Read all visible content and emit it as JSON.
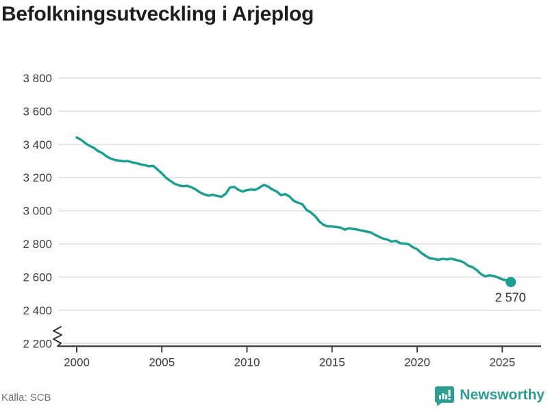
{
  "title": "Befolkningsutveckling i Arjeplog",
  "source_label": "Källa: SCB",
  "brand": {
    "name": "Newsworthy",
    "color": "#2d9d92",
    "icon": "newsworthy-speech-bubble-chart-icon"
  },
  "chart_data": {
    "type": "line",
    "title": "Befolkningsutveckling i Arjeplog",
    "xlabel": "",
    "ylabel": "",
    "legend": "none",
    "grid": "horizontal",
    "axis_break_at_bottom": true,
    "line_color": "#1d9f90",
    "axis_color": "#404040",
    "gridline_color": "#dedede",
    "tick_text_color": "#3c3c3c",
    "x_range": [
      2000,
      2027.3
    ],
    "y_range": [
      2200,
      3900
    ],
    "yticks": [
      3800,
      3600,
      3400,
      3200,
      3000,
      2800,
      2600,
      2400,
      2200
    ],
    "ytick_labels": [
      "3 800",
      "3 600",
      "3 400",
      "3 200",
      "3 000",
      "2 800",
      "2 600",
      "2 400",
      "2 200"
    ],
    "xticks": [
      2000,
      2005,
      2010,
      2015,
      2020,
      2025
    ],
    "xtick_labels": [
      "2000",
      "2005",
      "2010",
      "2015",
      "2020",
      "2025"
    ],
    "end_label": "2 570",
    "end_value": 2570,
    "series": [
      {
        "name": "Befolkning i Arjeplog",
        "points": [
          [
            2000.0,
            3442
          ],
          [
            2000.25,
            3428
          ],
          [
            2000.5,
            3408
          ],
          [
            2000.75,
            3392
          ],
          [
            2001.0,
            3380
          ],
          [
            2001.25,
            3360
          ],
          [
            2001.5,
            3348
          ],
          [
            2001.75,
            3328
          ],
          [
            2002.0,
            3314
          ],
          [
            2002.25,
            3306
          ],
          [
            2002.5,
            3302
          ],
          [
            2002.75,
            3298
          ],
          [
            2003.0,
            3300
          ],
          [
            2003.25,
            3292
          ],
          [
            2003.5,
            3287
          ],
          [
            2003.75,
            3280
          ],
          [
            2004.0,
            3275
          ],
          [
            2004.25,
            3268
          ],
          [
            2004.5,
            3270
          ],
          [
            2004.75,
            3248
          ],
          [
            2005.0,
            3225
          ],
          [
            2005.25,
            3198
          ],
          [
            2005.5,
            3180
          ],
          [
            2005.75,
            3163
          ],
          [
            2006.0,
            3153
          ],
          [
            2006.25,
            3148
          ],
          [
            2006.5,
            3150
          ],
          [
            2006.75,
            3141
          ],
          [
            2007.0,
            3128
          ],
          [
            2007.25,
            3110
          ],
          [
            2007.5,
            3098
          ],
          [
            2007.75,
            3092
          ],
          [
            2008.0,
            3096
          ],
          [
            2008.25,
            3090
          ],
          [
            2008.5,
            3084
          ],
          [
            2008.75,
            3102
          ],
          [
            2009.0,
            3140
          ],
          [
            2009.25,
            3144
          ],
          [
            2009.5,
            3126
          ],
          [
            2009.75,
            3116
          ],
          [
            2010.0,
            3124
          ],
          [
            2010.25,
            3128
          ],
          [
            2010.5,
            3126
          ],
          [
            2010.75,
            3140
          ],
          [
            2011.0,
            3156
          ],
          [
            2011.25,
            3145
          ],
          [
            2011.5,
            3128
          ],
          [
            2011.75,
            3116
          ],
          [
            2012.0,
            3094
          ],
          [
            2012.25,
            3100
          ],
          [
            2012.5,
            3086
          ],
          [
            2012.75,
            3060
          ],
          [
            2013.0,
            3048
          ],
          [
            2013.25,
            3040
          ],
          [
            2013.5,
            3005
          ],
          [
            2013.75,
            2990
          ],
          [
            2014.0,
            2968
          ],
          [
            2014.25,
            2936
          ],
          [
            2014.5,
            2915
          ],
          [
            2014.75,
            2906
          ],
          [
            2015.0,
            2905
          ],
          [
            2015.25,
            2902
          ],
          [
            2015.5,
            2898
          ],
          [
            2015.75,
            2886
          ],
          [
            2016.0,
            2894
          ],
          [
            2016.25,
            2890
          ],
          [
            2016.5,
            2886
          ],
          [
            2016.75,
            2880
          ],
          [
            2017.0,
            2875
          ],
          [
            2017.25,
            2870
          ],
          [
            2017.5,
            2856
          ],
          [
            2017.75,
            2844
          ],
          [
            2018.0,
            2832
          ],
          [
            2018.25,
            2826
          ],
          [
            2018.5,
            2814
          ],
          [
            2018.75,
            2818
          ],
          [
            2019.0,
            2804
          ],
          [
            2019.25,
            2802
          ],
          [
            2019.5,
            2798
          ],
          [
            2019.75,
            2780
          ],
          [
            2020.0,
            2768
          ],
          [
            2020.25,
            2745
          ],
          [
            2020.5,
            2728
          ],
          [
            2020.75,
            2713
          ],
          [
            2021.0,
            2710
          ],
          [
            2021.25,
            2703
          ],
          [
            2021.5,
            2711
          ],
          [
            2021.75,
            2706
          ],
          [
            2022.0,
            2712
          ],
          [
            2022.25,
            2704
          ],
          [
            2022.5,
            2698
          ],
          [
            2022.75,
            2688
          ],
          [
            2023.0,
            2668
          ],
          [
            2023.25,
            2660
          ],
          [
            2023.5,
            2642
          ],
          [
            2023.75,
            2618
          ],
          [
            2024.0,
            2604
          ],
          [
            2024.25,
            2611
          ],
          [
            2024.5,
            2606
          ],
          [
            2024.75,
            2598
          ],
          [
            2025.0,
            2586
          ],
          [
            2025.25,
            2581
          ],
          [
            2025.5,
            2570
          ]
        ]
      }
    ]
  }
}
